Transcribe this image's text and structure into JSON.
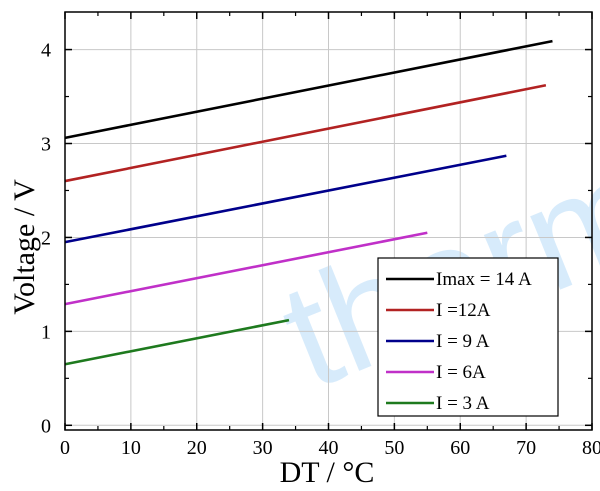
{
  "chart_data": {
    "type": "line",
    "xlabel": "DT / °C",
    "ylabel": "Voltage / V",
    "xlim": [
      0,
      80
    ],
    "ylim": [
      -0.05,
      4.4
    ],
    "xticks": [
      0,
      10,
      20,
      30,
      40,
      50,
      60,
      70,
      80
    ],
    "yticks": [
      0,
      1,
      2,
      3,
      4
    ],
    "grid": true,
    "legend_position": "bottom-right",
    "series": [
      {
        "name": "Imax = 14 A",
        "color": "#000000",
        "x": [
          0,
          74
        ],
        "y": [
          3.06,
          4.09
        ]
      },
      {
        "name": "I =12A",
        "color": "#b22222",
        "x": [
          0,
          73
        ],
        "y": [
          2.6,
          3.62
        ]
      },
      {
        "name": "I = 9 A",
        "color": "#00008b",
        "x": [
          0,
          67
        ],
        "y": [
          1.95,
          2.87
        ]
      },
      {
        "name": "I = 6A",
        "color": "#c030c8",
        "x": [
          0,
          55
        ],
        "y": [
          1.29,
          2.05
        ]
      },
      {
        "name": "I = 3 A",
        "color": "#1e7a1e",
        "x": [
          0,
          34
        ],
        "y": [
          0.65,
          1.12
        ]
      }
    ]
  },
  "watermark": {
    "text": "therm"
  }
}
